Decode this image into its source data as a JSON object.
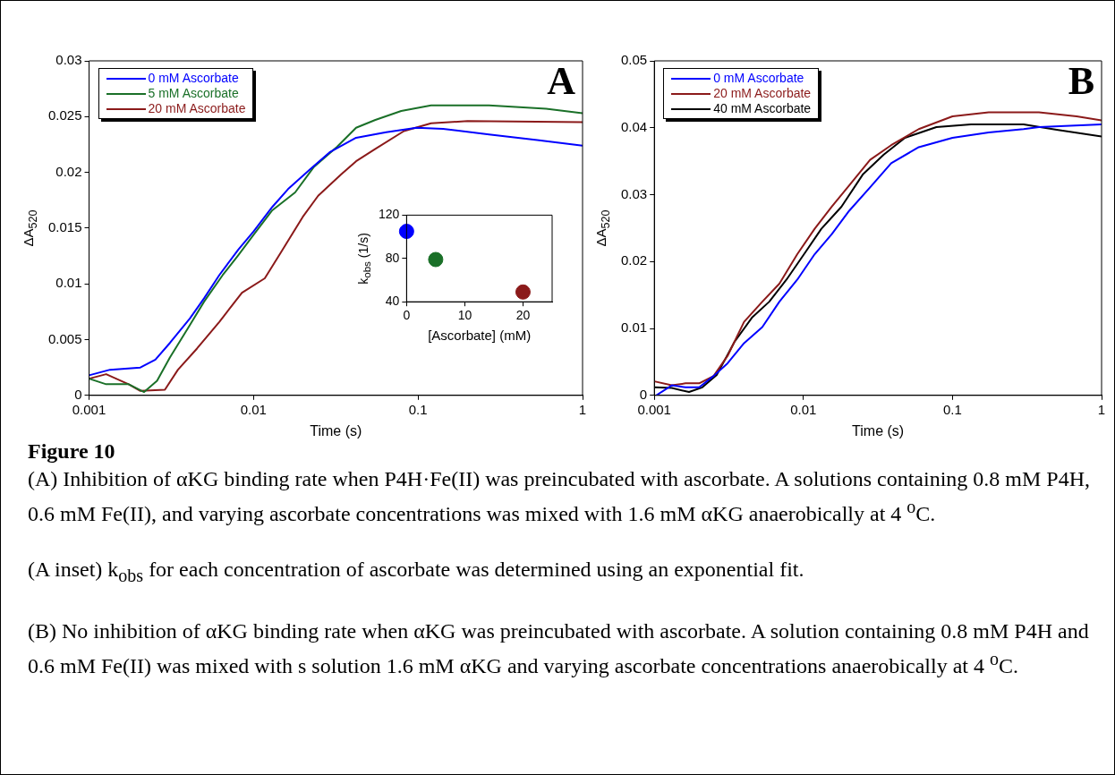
{
  "chart_data": [
    {
      "type": "line",
      "ylabel": "ΔA$_{520}$",
      "xlabel": "Time (s)",
      "log": "x",
      "xlim": [
        0.001,
        1
      ],
      "xticks": [
        0.001,
        0.01,
        0.1,
        1
      ],
      "ylim": [
        0,
        0.03
      ],
      "yticks": [
        0,
        0.005,
        0.01,
        0.015,
        0.02,
        0.025,
        0.03
      ],
      "legend": "top left",
      "annotations": [
        "A"
      ],
      "series": [
        {
          "name": "0 mM Ascorbate",
          "color": "#0000ff",
          "x": [
            0.001,
            0.00134,
            0.00205,
            0.00253,
            0.0031,
            0.0041,
            0.005,
            0.0062,
            0.0081,
            0.01,
            0.013,
            0.0162,
            0.0222,
            0.029,
            0.042,
            0.064,
            0.098,
            0.142,
            0.27,
            0.53,
            1
          ],
          "values": [
            0.0018,
            0.0023,
            0.0025,
            0.0032,
            0.0047,
            0.0069,
            0.0087,
            0.0108,
            0.0131,
            0.0147,
            0.0169,
            0.0185,
            0.0203,
            0.0218,
            0.0231,
            0.0236,
            0.024,
            0.0239,
            0.0234,
            0.0229,
            0.0224
          ]
        },
        {
          "name": "5 mM Ascorbate",
          "color": "#1a7028",
          "x": [
            0.001,
            0.00127,
            0.00174,
            0.00216,
            0.00259,
            0.0031,
            0.0041,
            0.005,
            0.0065,
            0.0081,
            0.01,
            0.013,
            0.0179,
            0.0233,
            0.0322,
            0.042,
            0.055,
            0.079,
            0.12,
            0.27,
            0.6,
            1
          ],
          "values": [
            0.0015,
            0.001,
            0.001,
            0.0003,
            0.0013,
            0.0034,
            0.0063,
            0.0084,
            0.0108,
            0.0126,
            0.0144,
            0.0166,
            0.0182,
            0.0205,
            0.0223,
            0.024,
            0.0247,
            0.0255,
            0.026,
            0.026,
            0.0257,
            0.0253
          ]
        },
        {
          "name": "20 mM Ascorbate",
          "color": "#8b1a1a",
          "x": [
            0.001,
            0.00127,
            0.00174,
            0.00205,
            0.00289,
            0.00347,
            0.00453,
            0.0062,
            0.0085,
            0.0117,
            0.0145,
            0.0199,
            0.0247,
            0.034,
            0.042,
            0.055,
            0.082,
            0.12,
            0.2,
            1
          ],
          "values": [
            0.0015,
            0.0019,
            0.001,
            0.0004,
            0.0005,
            0.0023,
            0.0042,
            0.0066,
            0.0092,
            0.0105,
            0.0127,
            0.016,
            0.0179,
            0.0198,
            0.021,
            0.0221,
            0.0237,
            0.0244,
            0.0246,
            0.0245
          ]
        }
      ]
    },
    {
      "type": "scatter",
      "ylabel": "k$_{obs}$ (1/s)",
      "xlabel": "[Ascorbate] (mM)",
      "xlim": [
        0,
        25
      ],
      "xticks": [
        0,
        10,
        20
      ],
      "ylim": [
        40,
        120
      ],
      "yticks": [
        40,
        80,
        120
      ],
      "marker": "circle",
      "x": [
        0,
        5,
        20
      ],
      "values": [
        105,
        79,
        49
      ],
      "colors": [
        "#0000ff",
        "#1a7028",
        "#8b1a1a"
      ]
    },
    {
      "type": "line",
      "ylabel": "ΔA$_{520}$",
      "xlabel": "Time (s)",
      "log": "x",
      "xlim": [
        0.001,
        1
      ],
      "xticks": [
        0.001,
        0.01,
        0.1,
        1
      ],
      "ylim": [
        0,
        0.05
      ],
      "yticks": [
        0,
        0.01,
        0.02,
        0.03,
        0.04,
        0.05
      ],
      "legend": "top left",
      "annotations": [
        "B"
      ],
      "series": [
        {
          "name": "0 mM Ascorbate",
          "color": "#0000ff",
          "x": [
            0.00103,
            0.00131,
            0.00162,
            0.002,
            0.0025,
            0.0031,
            0.004,
            0.0053,
            0.0069,
            0.0091,
            0.0119,
            0.0155,
            0.0203,
            0.028,
            0.0388,
            0.0594,
            0.1,
            0.175,
            0.3,
            0.38,
            1
          ],
          "values": [
            0,
            0.0015,
            0.0012,
            0.0012,
            0.0029,
            0.0048,
            0.0078,
            0.0102,
            0.014,
            0.0173,
            0.0211,
            0.0241,
            0.0276,
            0.0311,
            0.0347,
            0.0371,
            0.0385,
            0.0393,
            0.0398,
            0.0401,
            0.0405
          ]
        },
        {
          "name": "20 mM Ascorbate",
          "color": "#8b1a1a",
          "x": [
            0.001,
            0.00131,
            0.00162,
            0.002,
            0.0025,
            0.0031,
            0.004,
            0.0053,
            0.0069,
            0.0091,
            0.0119,
            0.0155,
            0.0203,
            0.028,
            0.0388,
            0.0594,
            0.1,
            0.175,
            0.38,
            0.68,
            1
          ],
          "values": [
            0.0021,
            0.0015,
            0.0018,
            0.0018,
            0.0029,
            0.0059,
            0.011,
            0.014,
            0.0167,
            0.0211,
            0.0249,
            0.0282,
            0.0314,
            0.0352,
            0.0374,
            0.0398,
            0.0417,
            0.0423,
            0.0423,
            0.0417,
            0.0411
          ]
        },
        {
          "name": "40 mM Ascorbate",
          "color": "#000000",
          "x": [
            0.001,
            0.00131,
            0.00171,
            0.0021,
            0.00263,
            0.00345,
            0.00451,
            0.0059,
            0.0077,
            0.0101,
            0.0132,
            0.018,
            0.025,
            0.0346,
            0.048,
            0.078,
            0.133,
            0.3,
            0.5,
            1
          ],
          "values": [
            0.0012,
            0.0011,
            0.0005,
            0.0012,
            0.0031,
            0.008,
            0.0116,
            0.014,
            0.0173,
            0.0211,
            0.0249,
            0.0282,
            0.033,
            0.036,
            0.0385,
            0.0401,
            0.0405,
            0.0405,
            0.0397,
            0.0387
          ]
        }
      ]
    },
    {
      "type": "other",
      "title": "Figure 10",
      "annotations": [
        "(A) Inhibition of αKG binding rate when P4H·Fe(II) was preincubated with ascorbate. A solutions containing 0.8 mM P4H, 0.6 mM Fe(II), and varying ascorbate concentrations was mixed with 1.6 mM αKG anaerobically at 4 $^{o}$C.",
        "(A inset) k$_{obs}$ for each concentration of ascorbate was determined using an exponential fit.",
        "(B) No inhibition of αKG binding rate when αKG was preincubated with ascorbate.  A solution containing 0.8 mM P4H and 0.6 mM Fe(II) was mixed with s solution 1.6 mM αKG and varying ascorbate concentrations anaerobically at 4 $^{o}$C."
      ]
    }
  ]
}
